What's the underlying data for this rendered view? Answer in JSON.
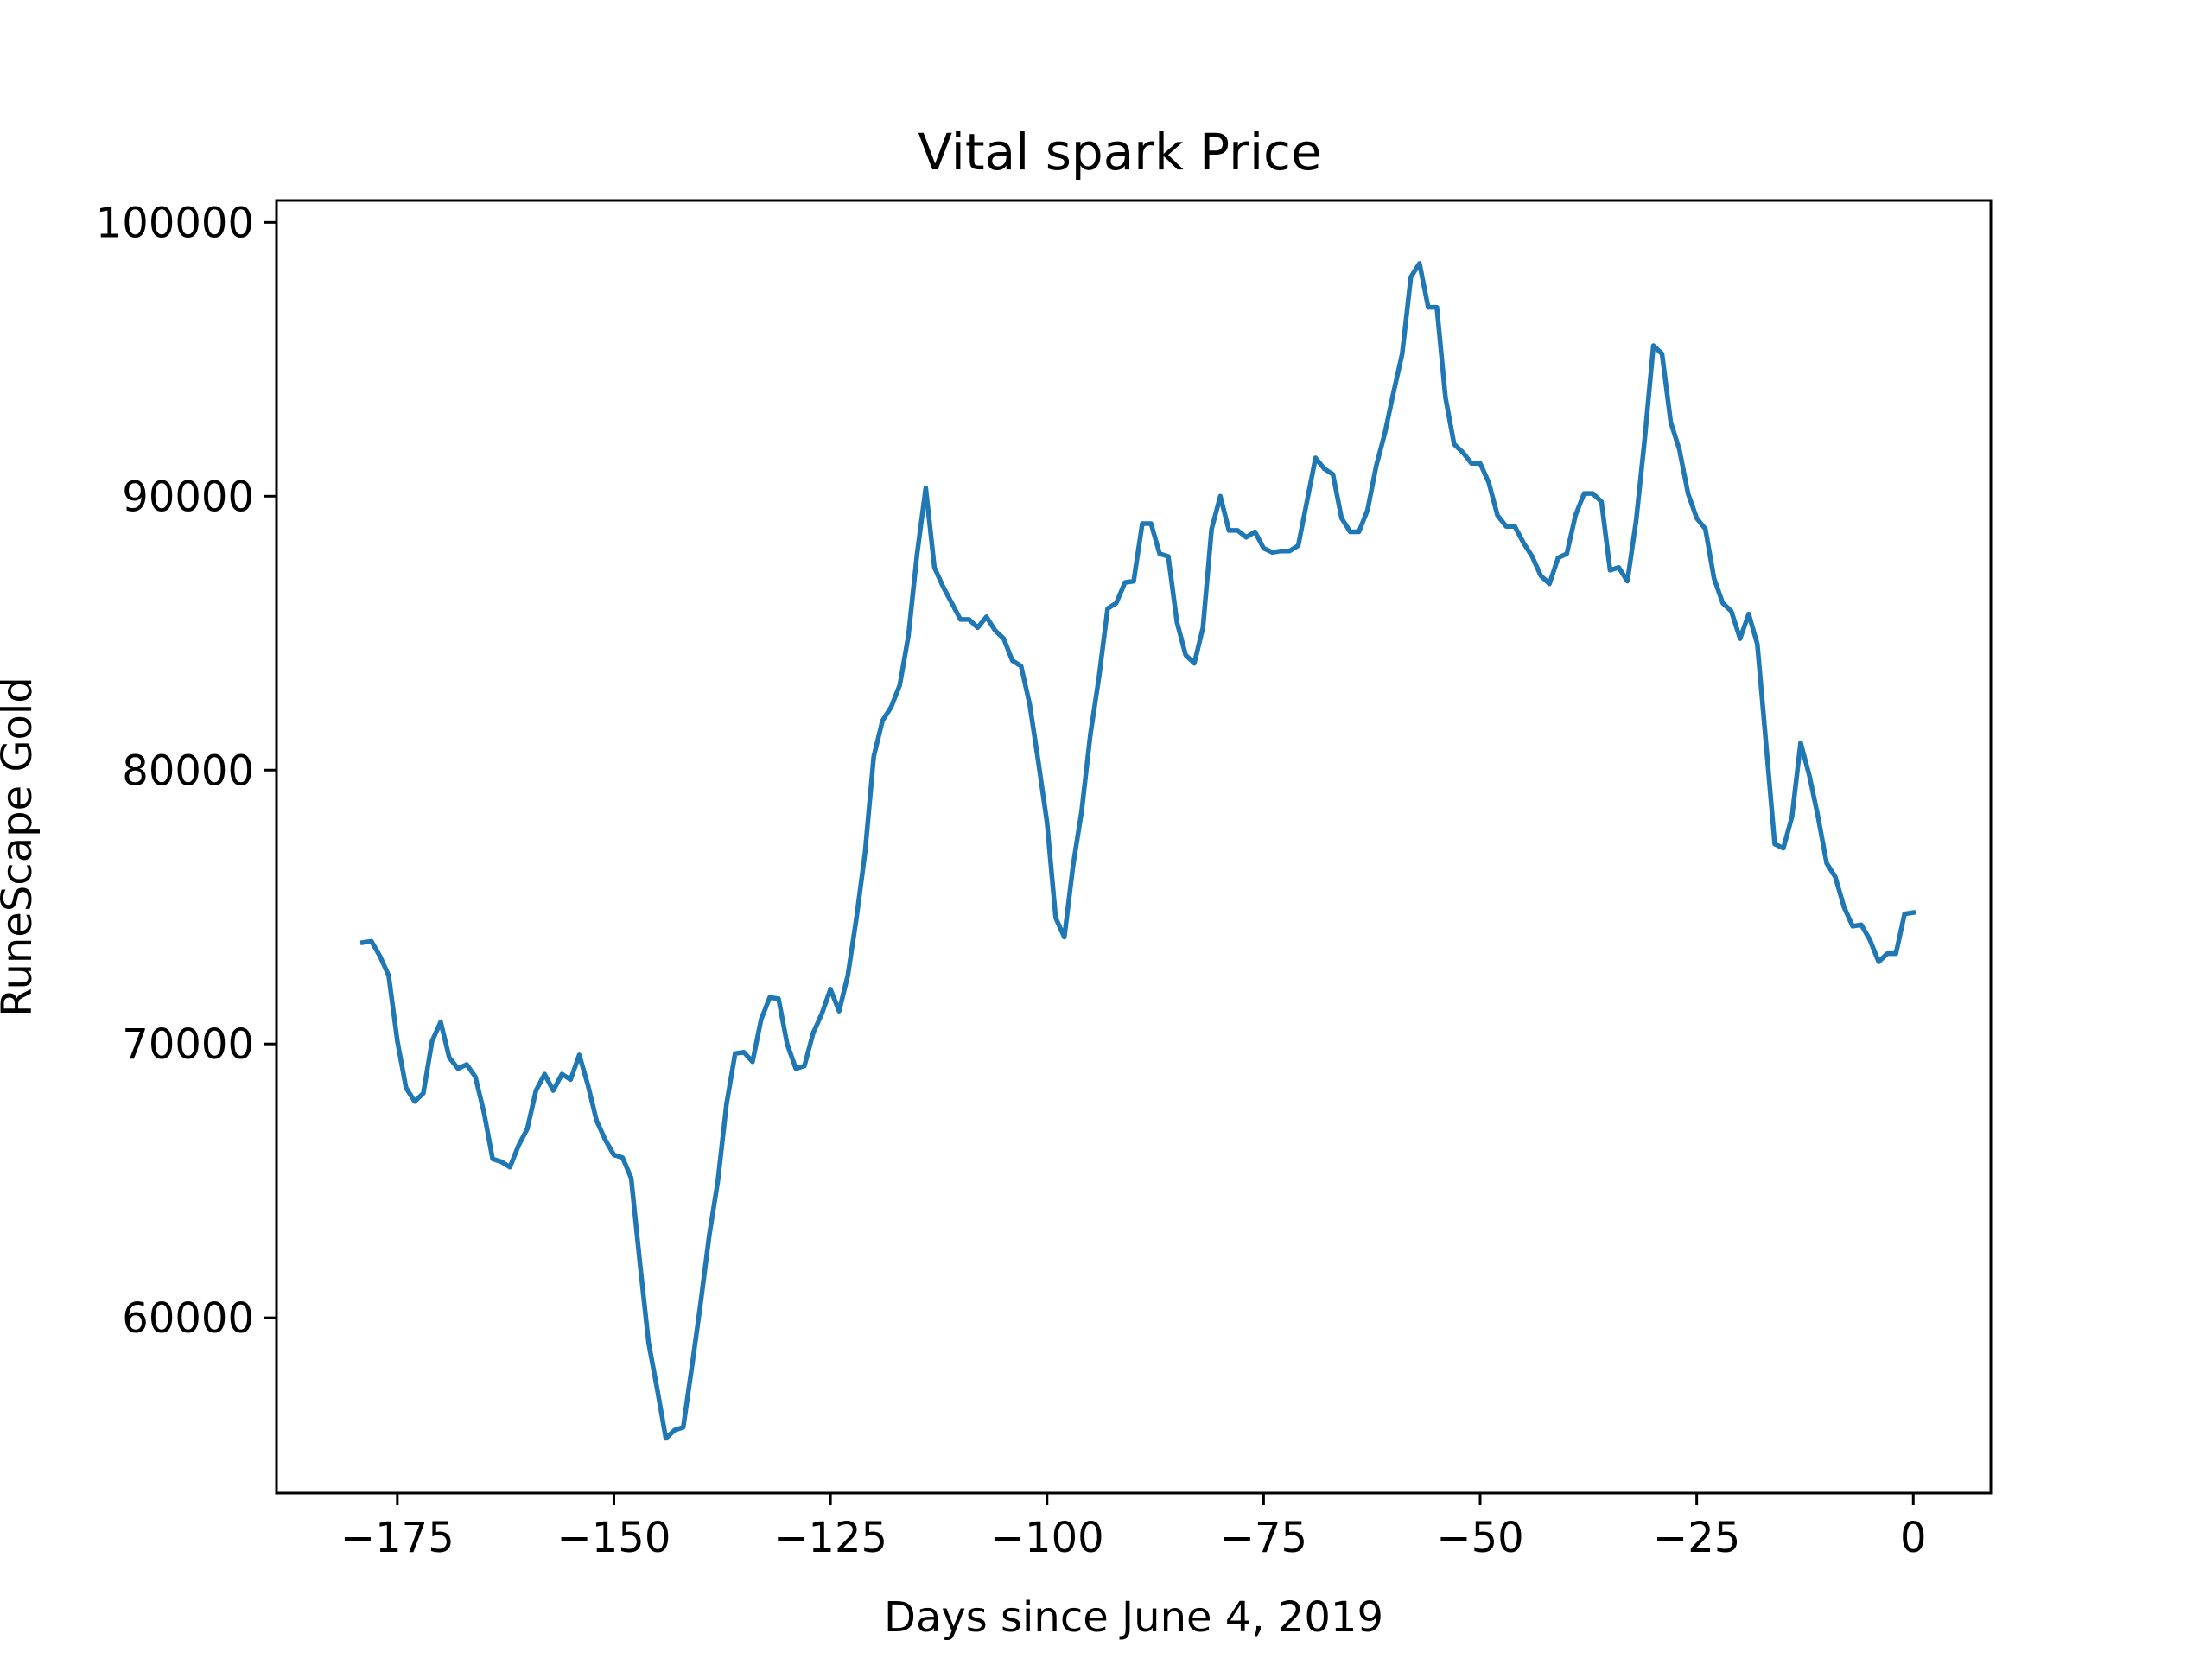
{
  "chart_data": {
    "type": "line",
    "title": "Vital spark Price",
    "xlabel": "Days since June 4, 2019",
    "ylabel": "RuneScape Gold",
    "xlim": [
      -188.95,
      8.95
    ],
    "ylim": [
      53600,
      100800
    ],
    "x_ticks": [
      -175,
      -150,
      -125,
      -100,
      -75,
      -50,
      -25,
      0
    ],
    "x_tick_labels": [
      "−175",
      "−150",
      "−125",
      "−100",
      "−75",
      "−50",
      "−25",
      "0"
    ],
    "y_ticks": [
      60000,
      70000,
      80000,
      90000,
      100000
    ],
    "y_tick_labels": [
      "60000",
      "70000",
      "80000",
      "90000",
      "100000"
    ],
    "grid": false,
    "legend": "none",
    "series_color": "#1f77b4",
    "series": [
      {
        "x": [
          -179,
          -178,
          -177,
          -176,
          -175,
          -174,
          -173,
          -172,
          -171,
          -170,
          -169,
          -168,
          -167,
          -166,
          -165,
          -164,
          -163,
          -162,
          -161,
          -160,
          -159,
          -158,
          -157,
          -156,
          -155,
          -154,
          -153,
          -152,
          -151,
          -150,
          -149,
          -148,
          -147,
          -146,
          -145,
          -144,
          -143,
          -142,
          -141,
          -140,
          -139,
          -138,
          -137,
          -136,
          -135,
          -134,
          -133,
          -132,
          -131,
          -130,
          -129,
          -128,
          -127,
          -126,
          -125,
          -124,
          -123,
          -122,
          -121,
          -120,
          -119,
          -118,
          -117,
          -116,
          -115,
          -114,
          -113,
          -112,
          -111,
          -110,
          -109,
          -108,
          -107,
          -106,
          -105,
          -104,
          -103,
          -102,
          -101,
          -100,
          -99,
          -98,
          -97,
          -96,
          -95,
          -94,
          -93,
          -92,
          -91,
          -90,
          -89,
          -88,
          -87,
          -86,
          -85,
          -84,
          -83,
          -82,
          -81,
          -80,
          -79,
          -78,
          -77,
          -76,
          -75,
          -74,
          -73,
          -72,
          -71,
          -70,
          -69,
          -68,
          -67,
          -66,
          -65,
          -64,
          -63,
          -62,
          -61,
          -60,
          -59,
          -58,
          -57,
          -56,
          -55,
          -54,
          -53,
          -52,
          -51,
          -50,
          -49,
          -48,
          -47,
          -46,
          -45,
          -44,
          -43,
          -42,
          -41,
          -40,
          -39,
          -38,
          -37,
          -36,
          -35,
          -34,
          -33,
          -32,
          -31,
          -30,
          -29,
          -28,
          -27,
          -26,
          -25,
          -24,
          -23,
          -22,
          -21,
          -20,
          -19,
          -18,
          -17,
          -16,
          -15,
          -14,
          -13,
          -12,
          -11,
          -10,
          -9,
          -8,
          -7,
          -6,
          -5,
          -4,
          -3,
          -2,
          -1,
          0
        ],
        "y": [
          73700,
          73750,
          73200,
          72500,
          70100,
          68400,
          67900,
          68200,
          70100,
          70800,
          69500,
          69100,
          69250,
          68800,
          67500,
          65800,
          65700,
          65500,
          66300,
          66900,
          68300,
          68900,
          68300,
          68900,
          68700,
          69600,
          68500,
          67200,
          66500,
          65950,
          65850,
          65100,
          62000,
          59100,
          57400,
          55600,
          55900,
          56000,
          58200,
          60500,
          63000,
          65000,
          67800,
          69650,
          69700,
          69350,
          70900,
          71700,
          71650,
          70000,
          69100,
          69200,
          70400,
          71100,
          72000,
          71200,
          72500,
          74600,
          77000,
          80500,
          81800,
          82300,
          83100,
          84900,
          87900,
          90300,
          87400,
          86700,
          86100,
          85500,
          85500,
          85200,
          85600,
          85100,
          84800,
          84000,
          83800,
          82400,
          80300,
          78100,
          74600,
          73900,
          76500,
          78500,
          81300,
          83400,
          85900,
          86100,
          86850,
          86900,
          89000,
          89000,
          87900,
          87800,
          85400,
          84200,
          83900,
          85200,
          88800,
          90000,
          88750,
          88750,
          88500,
          88700,
          88100,
          87950,
          88000,
          88000,
          88200,
          89800,
          91400,
          91000,
          90800,
          89200,
          88700,
          88700,
          89500,
          91100,
          92300,
          93800,
          95200,
          98000,
          98500,
          96900,
          96900,
          93600,
          91900,
          91600,
          91200,
          91200,
          90500,
          89300,
          88900,
          88900,
          88300,
          87800,
          87100,
          86800,
          87750,
          87900,
          89300,
          90100,
          90100,
          89800,
          87300,
          87400,
          86900,
          89100,
          92100,
          95500,
          95200,
          92700,
          91700,
          90100,
          89200,
          88800,
          87000,
          86100,
          85800,
          84800,
          85700,
          84600,
          81000,
          77300,
          77150,
          78300,
          81000,
          79800,
          78300,
          76600,
          76100,
          75000,
          74300,
          74350,
          73800,
          73000,
          73300,
          73300,
          74750,
          74800
        ]
      }
    ]
  }
}
